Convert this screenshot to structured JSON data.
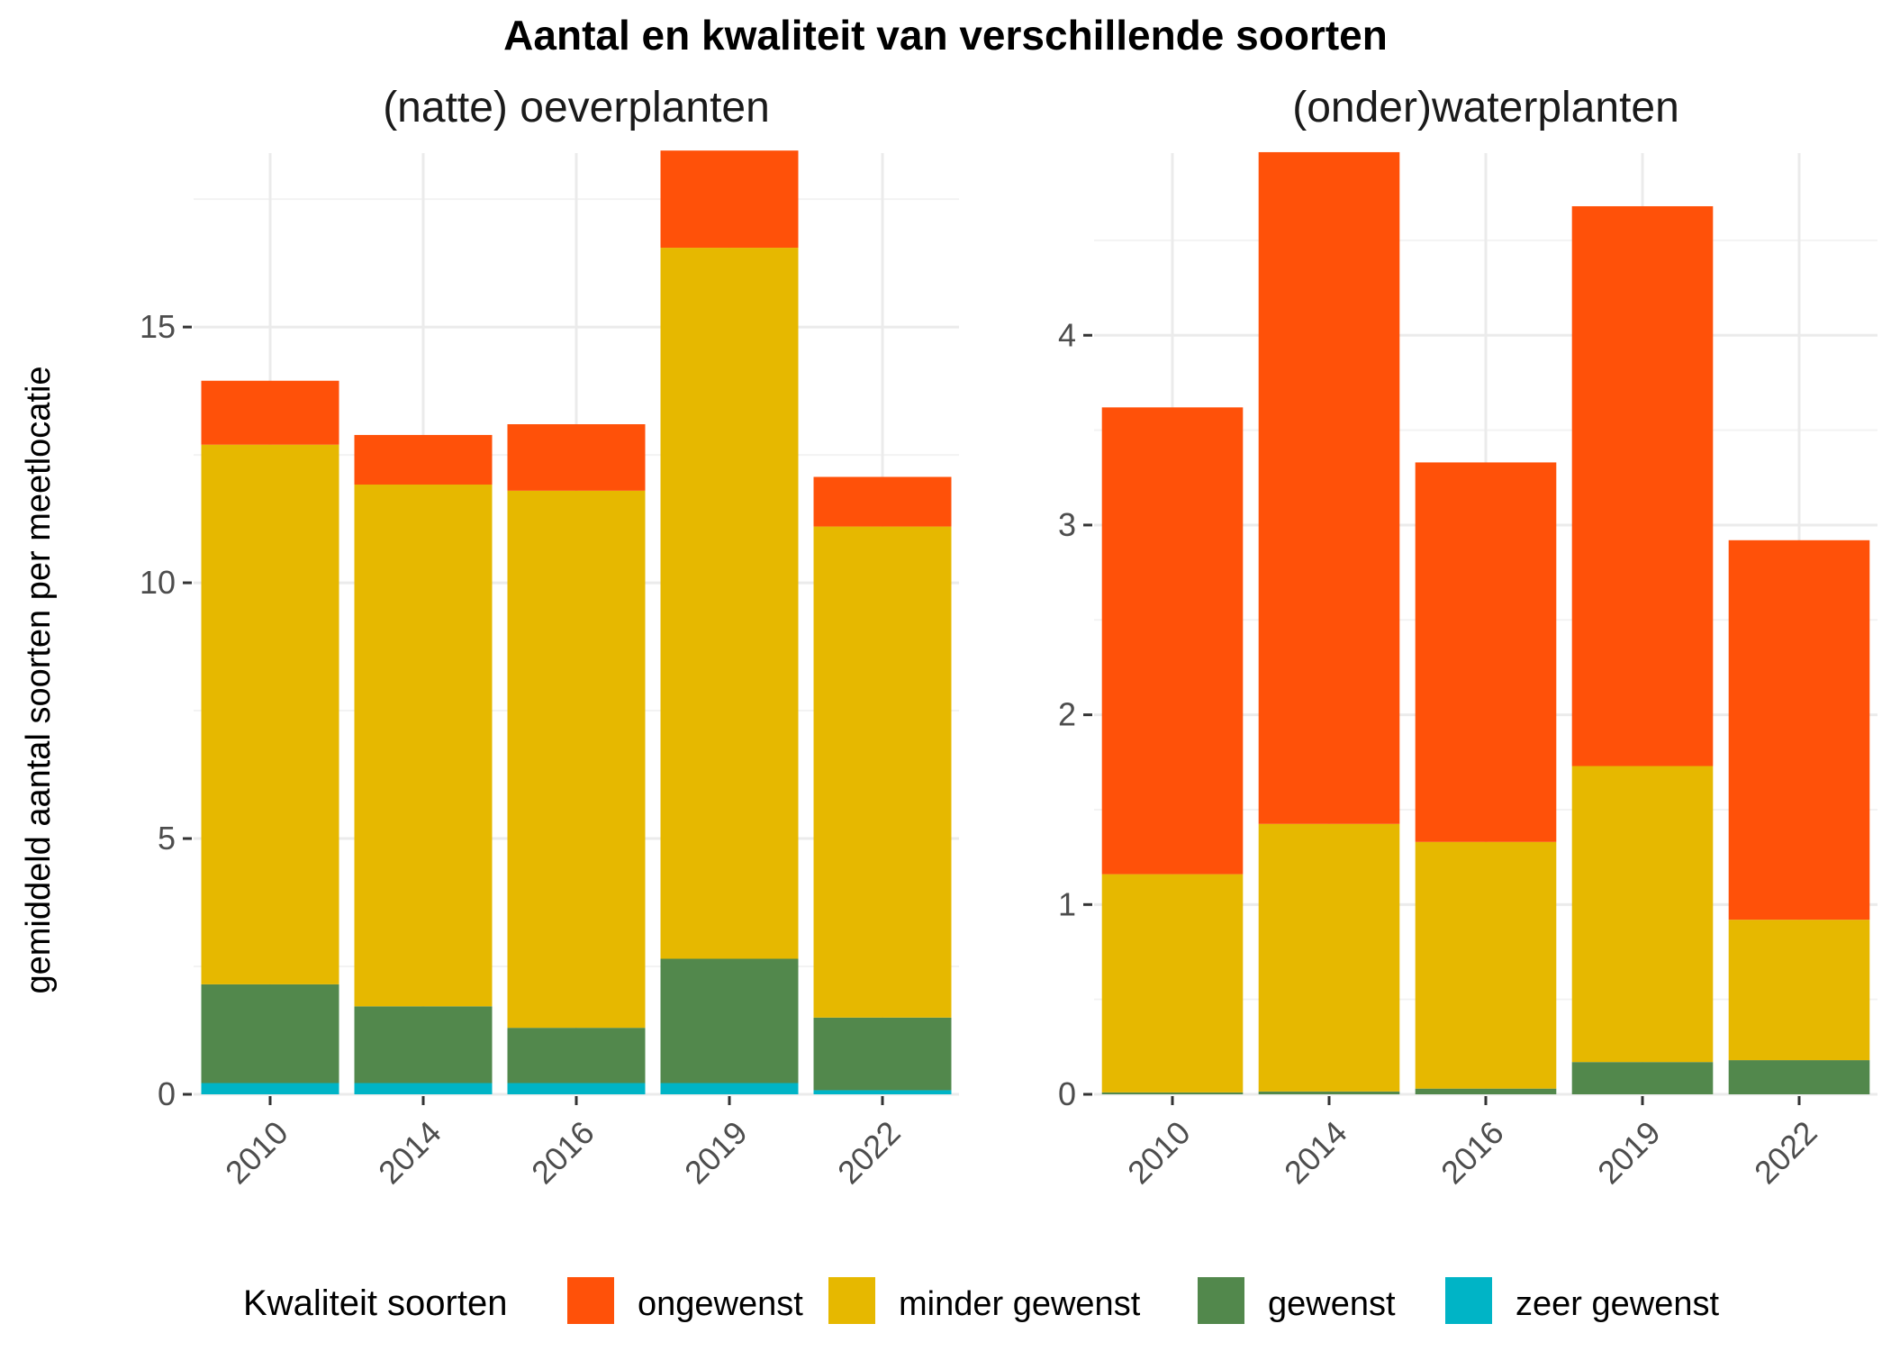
{
  "chart_data": {
    "type": "bar",
    "stacked": true,
    "title": "Aantal en kwaliteit van verschillende soorten",
    "ylabel": "gemiddeld aantal soorten per meetlocatie",
    "xlabel": "",
    "grid": true,
    "legend": {
      "title": "Kwaliteit soorten",
      "position": "bottom",
      "items": [
        {
          "label": "ongewenst",
          "color": "#FF5109"
        },
        {
          "label": "minder gewenst",
          "color": "#E6B800"
        },
        {
          "label": "gewenst",
          "color": "#52884C"
        },
        {
          "label": "zeer gewenst",
          "color": "#00B4C6"
        }
      ]
    },
    "panels": [
      {
        "title": "(natte) oeverplanten",
        "categories": [
          "2010",
          "2014",
          "2016",
          "2019",
          "2022"
        ],
        "ylim": [
          0,
          18.4
        ],
        "yticks": [
          0,
          5,
          10,
          15
        ],
        "series": [
          {
            "name": "zeer gewenst",
            "color": "#00B4C6",
            "values": [
              0.22,
              0.22,
              0.22,
              0.22,
              0.08
            ]
          },
          {
            "name": "gewenst",
            "color": "#52884C",
            "values": [
              1.93,
              1.5,
              1.08,
              2.43,
              1.42
            ]
          },
          {
            "name": "minder gewenst",
            "color": "#E6B800",
            "values": [
              10.55,
              10.2,
              10.5,
              13.9,
              9.6
            ]
          },
          {
            "name": "ongewenst",
            "color": "#FF5109",
            "values": [
              1.25,
              0.97,
              1.3,
              1.9,
              0.97
            ]
          }
        ]
      },
      {
        "title": "(onder)waterplanten",
        "categories": [
          "2010",
          "2014",
          "2016",
          "2019",
          "2022"
        ],
        "ylim": [
          0,
          4.96
        ],
        "yticks": [
          0,
          1,
          2,
          3,
          4
        ],
        "series": [
          {
            "name": "zeer gewenst",
            "color": "#00B4C6",
            "values": [
              0,
              0,
              0,
              0,
              0
            ]
          },
          {
            "name": "gewenst",
            "color": "#52884C",
            "values": [
              0.01,
              0.015,
              0.03,
              0.17,
              0.18
            ]
          },
          {
            "name": "minder gewenst",
            "color": "#E6B800",
            "values": [
              1.15,
              1.41,
              1.3,
              1.56,
              0.74
            ]
          },
          {
            "name": "ongewenst",
            "color": "#FF5109",
            "values": [
              2.46,
              3.54,
              2.0,
              2.95,
              2.0
            ]
          }
        ]
      }
    ]
  }
}
